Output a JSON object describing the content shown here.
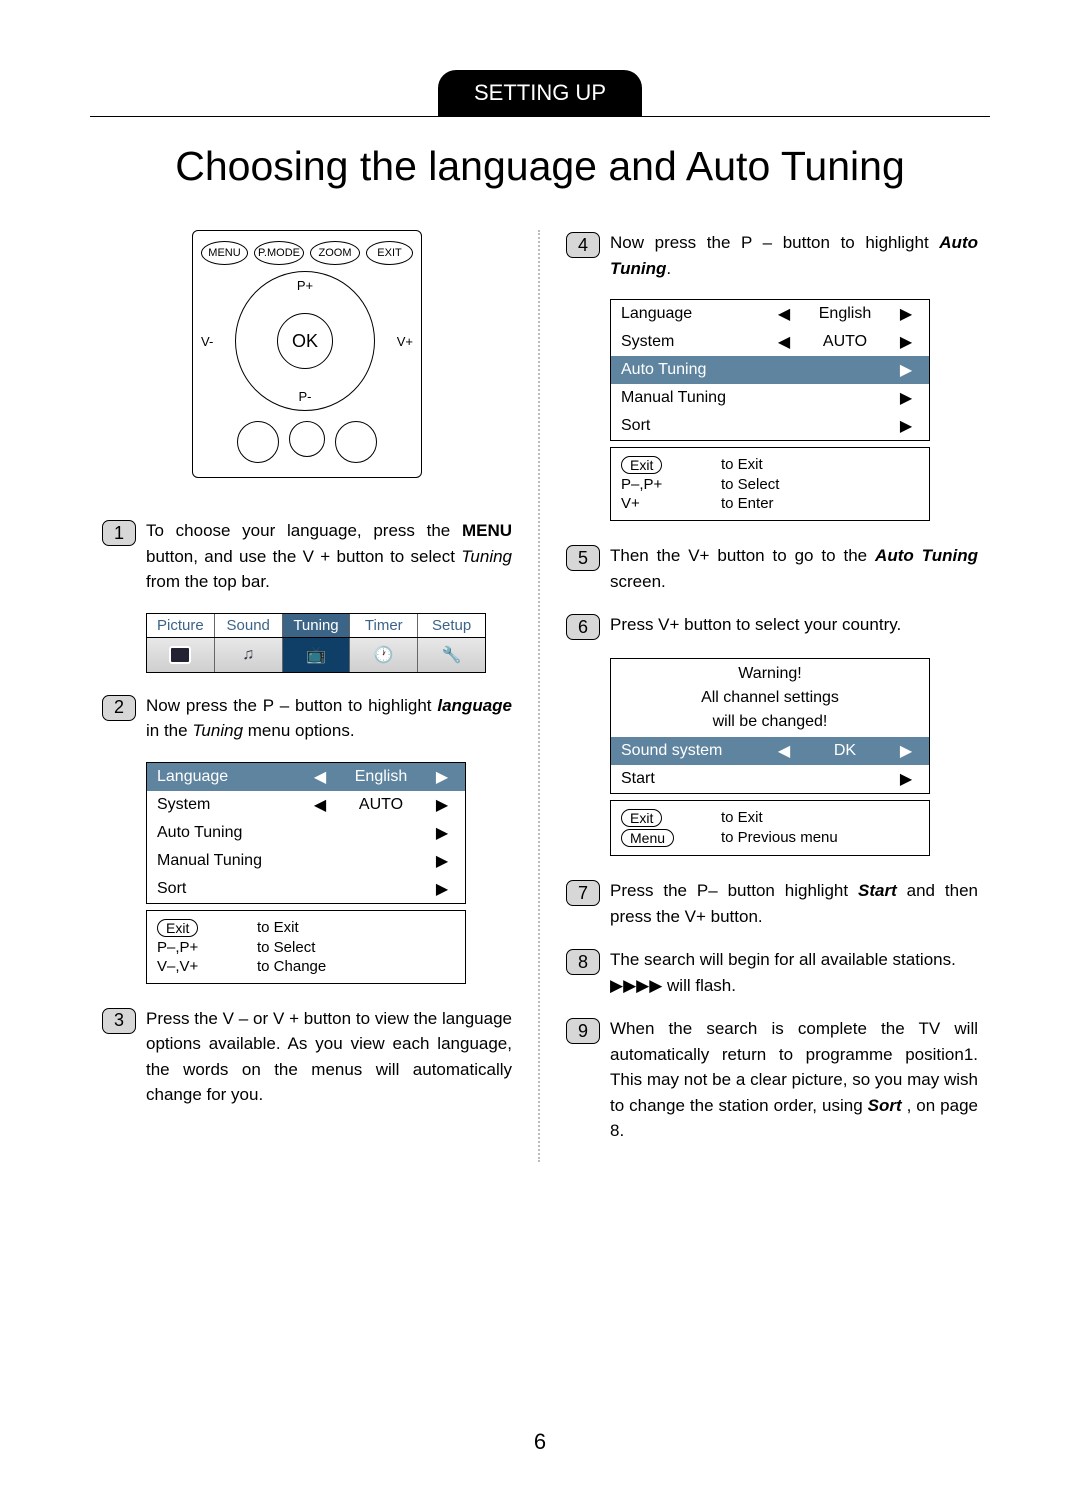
{
  "section_label": "SETTING UP",
  "page_title": "Choosing the language and Auto Tuning",
  "page_number": "6",
  "remote": {
    "top_buttons": [
      "P.MODE",
      "ZOOM"
    ],
    "side_buttons": [
      "MENU",
      "EXIT"
    ],
    "dpad": {
      "up": "P+",
      "down": "P-",
      "left": "V-",
      "right": "V+",
      "center": "OK"
    }
  },
  "steps": {
    "s1": {
      "num": "1",
      "text_a": "To choose your language,  press the ",
      "menu": "MENU",
      "text_b": " button,   and use the V + button to select ",
      "tuning": "Tuning",
      "text_c": " from the top bar."
    },
    "s2": {
      "num": "2",
      "text_a": "Now press the P – button to highlight ",
      "lang": "language",
      "text_b": " in the ",
      "tuning": "Tuning",
      "text_c": " menu options."
    },
    "s3": {
      "num": "3",
      "text": "Press the V – or V + button to view the language options available. As you view each language,   the words on the menus will automatically change for you."
    },
    "s4": {
      "num": "4",
      "text_a": "Now press the P – button to highlight ",
      "auto": "Auto Tuning",
      "text_b": "."
    },
    "s5": {
      "num": "5",
      "text_a": "Then the V+ button to go to the ",
      "auto": "Auto Tuning",
      "text_b": " screen."
    },
    "s6": {
      "num": "6",
      "text": "Press V+ button to select your country."
    },
    "s7": {
      "num": "7",
      "text_a": "Press the P– button highlight ",
      "start": "Start",
      "text_b": " and then press the V+ button."
    },
    "s8": {
      "num": "8",
      "text_a": "The search will begin for all available stations.",
      "text_b": "▶▶▶▶ will flash."
    },
    "s9": {
      "num": "9",
      "text_a": "When the search is complete the TV will automatically return to programme position1. This may not be a clear picture,  so you may wish to change the station order, using ",
      "sort": "Sort",
      "text_b": " , on page 8."
    }
  },
  "tabs": [
    "Picture",
    "Sound",
    "Tuning",
    "Timer",
    "Setup"
  ],
  "tuning_menu_a": {
    "rows": [
      {
        "label": "Language",
        "left": "◀",
        "val": "English",
        "right": "▶",
        "sel": true
      },
      {
        "label": "System",
        "left": "◀",
        "val": "AUTO",
        "right": "▶"
      },
      {
        "label": "Auto Tuning",
        "right": "▶"
      },
      {
        "label": "Manual Tuning",
        "right": "▶"
      },
      {
        "label": "Sort",
        "right": "▶"
      }
    ],
    "help": [
      {
        "key": "Exit",
        "pill": true,
        "txt": "to Exit"
      },
      {
        "key": "P–,P+",
        "txt": "to Select"
      },
      {
        "key": "V–,V+",
        "txt": "to Change"
      }
    ]
  },
  "tuning_menu_b": {
    "rows": [
      {
        "label": "Language",
        "left": "◀",
        "val": "English",
        "right": "▶"
      },
      {
        "label": "System",
        "left": "◀",
        "val": "AUTO",
        "right": "▶"
      },
      {
        "label": "Auto Tuning",
        "right": "▶",
        "sel": true
      },
      {
        "label": "Manual Tuning",
        "right": "▶"
      },
      {
        "label": "Sort",
        "right": "▶"
      }
    ],
    "help": [
      {
        "key": "Exit",
        "pill": true,
        "txt": "to Exit"
      },
      {
        "key": "P–,P+",
        "txt": "to Select"
      },
      {
        "key": "V+",
        "txt": "to Enter"
      }
    ]
  },
  "warning_box": {
    "head1": "Warning!",
    "head2": "All channel settings",
    "head3": "will be changed!",
    "row_sel": {
      "label": "Sound system",
      "left": "◀",
      "val": "DK",
      "right": "▶"
    },
    "row_start": {
      "label": "Start",
      "right": "▶"
    },
    "help": [
      {
        "key": "Exit",
        "pill": true,
        "txt": "to Exit"
      },
      {
        "key": "Menu",
        "pill": true,
        "txt": "to Previous menu"
      }
    ]
  }
}
